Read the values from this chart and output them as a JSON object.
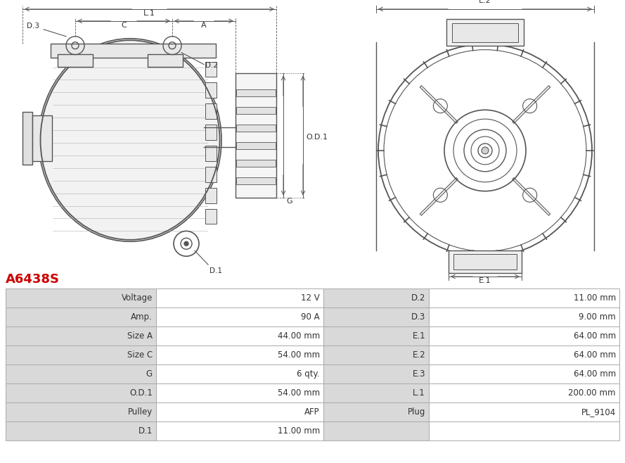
{
  "title": "A6438S",
  "title_color": "#cc0000",
  "background_color": "#ffffff",
  "table_data": [
    [
      "Voltage",
      "12 V",
      "D.2",
      "11.00 mm"
    ],
    [
      "Amp.",
      "90 A",
      "D.3",
      "9.00 mm"
    ],
    [
      "Size A",
      "44.00 mm",
      "E.1",
      "64.00 mm"
    ],
    [
      "Size C",
      "54.00 mm",
      "E.2",
      "64.00 mm"
    ],
    [
      "G",
      "6 qty.",
      "E.3",
      "64.00 mm"
    ],
    [
      "O.D.1",
      "54.00 mm",
      "L.1",
      "200.00 mm"
    ],
    [
      "Pulley",
      "AFP",
      "Plug",
      "PL_9104"
    ],
    [
      "D.1",
      "11.00 mm",
      "",
      ""
    ]
  ],
  "header_bg": "#d9d9d9",
  "value_bg": "#ffffff",
  "border_color": "#aaaaaa",
  "font_size": 8.5,
  "line_color": "#555555"
}
